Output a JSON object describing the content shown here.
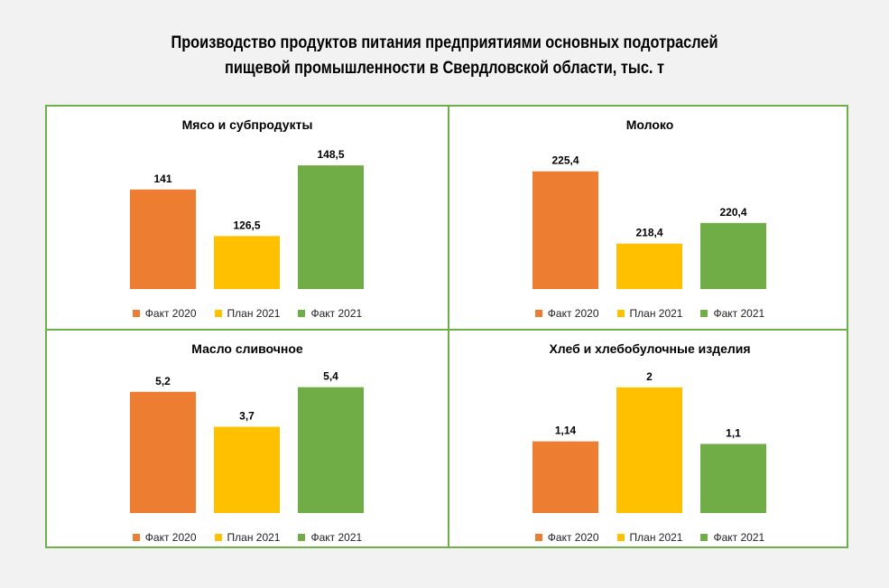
{
  "title_lines": [
    "Производство продуктов питания предприятиями основных подотраслей",
    "пищевой промышленности в Свердловской области, тыс. т"
  ],
  "colors": {
    "fact2020": "#ed7d31",
    "plan2021": "#ffc000",
    "fact2021": "#70ad47",
    "border": "#6fb04a"
  },
  "chart_data": [
    {
      "type": "bar",
      "title": "Мясо и субпродукты",
      "categories": [
        "Факт 2020",
        "План 2021",
        "Факт 2021"
      ],
      "series": [
        {
          "values": [
            141,
            126.5,
            148.5
          ]
        }
      ],
      "value_labels": [
        "141",
        "126,5",
        "148,5"
      ],
      "ylim": [
        110,
        155
      ],
      "legend": "bottom"
    },
    {
      "type": "bar",
      "title": "Молоко",
      "categories": [
        "Факт 2020",
        "План 2021",
        "Факт 2021"
      ],
      "series": [
        {
          "values": [
            225.4,
            218.4,
            220.4
          ]
        }
      ],
      "value_labels": [
        "225,4",
        "218,4",
        "220,4"
      ],
      "ylim": [
        214,
        228
      ],
      "legend": "bottom"
    },
    {
      "type": "bar",
      "title": "Масло сливочное",
      "categories": [
        "Факт 2020",
        "План 2021",
        "Факт 2021"
      ],
      "series": [
        {
          "values": [
            5.2,
            3.7,
            5.4
          ]
        }
      ],
      "value_labels": [
        "5,2",
        "3,7",
        "5,4"
      ],
      "ylim": [
        0,
        6.2
      ],
      "legend": "bottom"
    },
    {
      "type": "bar",
      "title": "Хлеб и хлебобулочные изделия",
      "categories": [
        "Факт 2020",
        "План 2021",
        "Факт 2021"
      ],
      "series": [
        {
          "values": [
            1.14,
            2,
            1.1
          ]
        }
      ],
      "value_labels": [
        "1,14",
        "2",
        "1,1"
      ],
      "ylim": [
        0,
        2.3
      ],
      "legend": "bottom"
    }
  ]
}
